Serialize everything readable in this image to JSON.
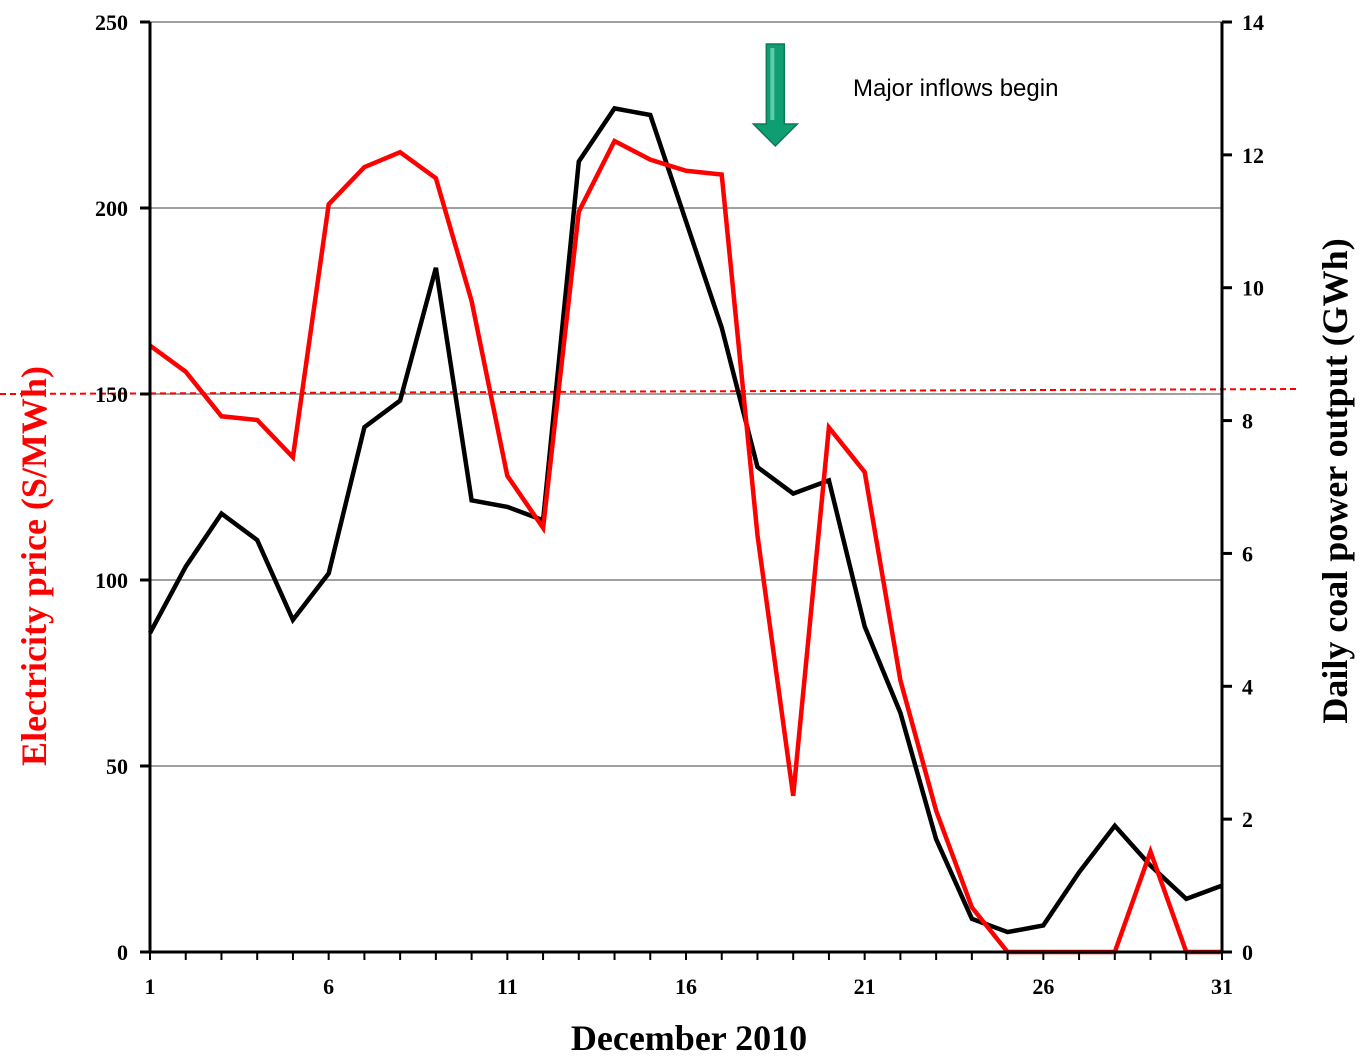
{
  "chart_data": {
    "type": "line",
    "xlabel": "December 2010",
    "x": [
      1,
      2,
      3,
      4,
      5,
      6,
      7,
      8,
      9,
      10,
      11,
      12,
      13,
      14,
      15,
      16,
      17,
      18,
      19,
      20,
      21,
      22,
      23,
      24,
      25,
      26,
      27,
      28,
      29,
      30,
      31
    ],
    "x_ticks": [
      "1",
      "6",
      "11",
      "16",
      "21",
      "26",
      "31"
    ],
    "x_tick_values": [
      1,
      6,
      11,
      16,
      21,
      26,
      31
    ],
    "xlim": [
      1,
      31
    ],
    "y_left": {
      "label": "Electricity price (S/MWh)",
      "color": "#ff0000",
      "lim": [
        0,
        250
      ],
      "ticks": [
        "0",
        "50",
        "100",
        "150",
        "200",
        "250"
      ],
      "tick_values": [
        0,
        50,
        100,
        150,
        200,
        250
      ]
    },
    "y_right": {
      "label": "Daily coal power output (GWh)",
      "color": "#000000",
      "lim": [
        0,
        14
      ],
      "ticks": [
        "0",
        "2",
        "4",
        "6",
        "8",
        "10",
        "12",
        "14"
      ],
      "tick_values": [
        0,
        2,
        4,
        6,
        8,
        10,
        12,
        14
      ]
    },
    "gridlines": "horizontal",
    "series": [
      {
        "axis": "left",
        "color": "#ff0000",
        "values": [
          163,
          156,
          144,
          143,
          133,
          201,
          211,
          215,
          208,
          175,
          128,
          114,
          199,
          218,
          213,
          210,
          209,
          112,
          42,
          141,
          129,
          73,
          38,
          12,
          0,
          0,
          0,
          0,
          27,
          0,
          0
        ]
      },
      {
        "axis": "right",
        "color": "#000000",
        "values": [
          4.8,
          5.8,
          6.6,
          6.2,
          5.0,
          5.7,
          7.9,
          8.3,
          10.3,
          6.8,
          6.7,
          6.5,
          11.9,
          12.7,
          12.6,
          11.0,
          9.4,
          7.3,
          6.9,
          7.1,
          4.9,
          3.6,
          1.7,
          0.5,
          0.3,
          0.4,
          1.2,
          1.9,
          1.3,
          0.8,
          1.0
        ]
      }
    ],
    "reference_line": {
      "axis": "left",
      "value": 150,
      "color": "#ff0000",
      "style": "dashed"
    },
    "annotations": [
      {
        "text": "Major inflows begin",
        "arrow": "down",
        "arrow_color": "#0e9e72",
        "at_x": 18.5
      }
    ]
  }
}
